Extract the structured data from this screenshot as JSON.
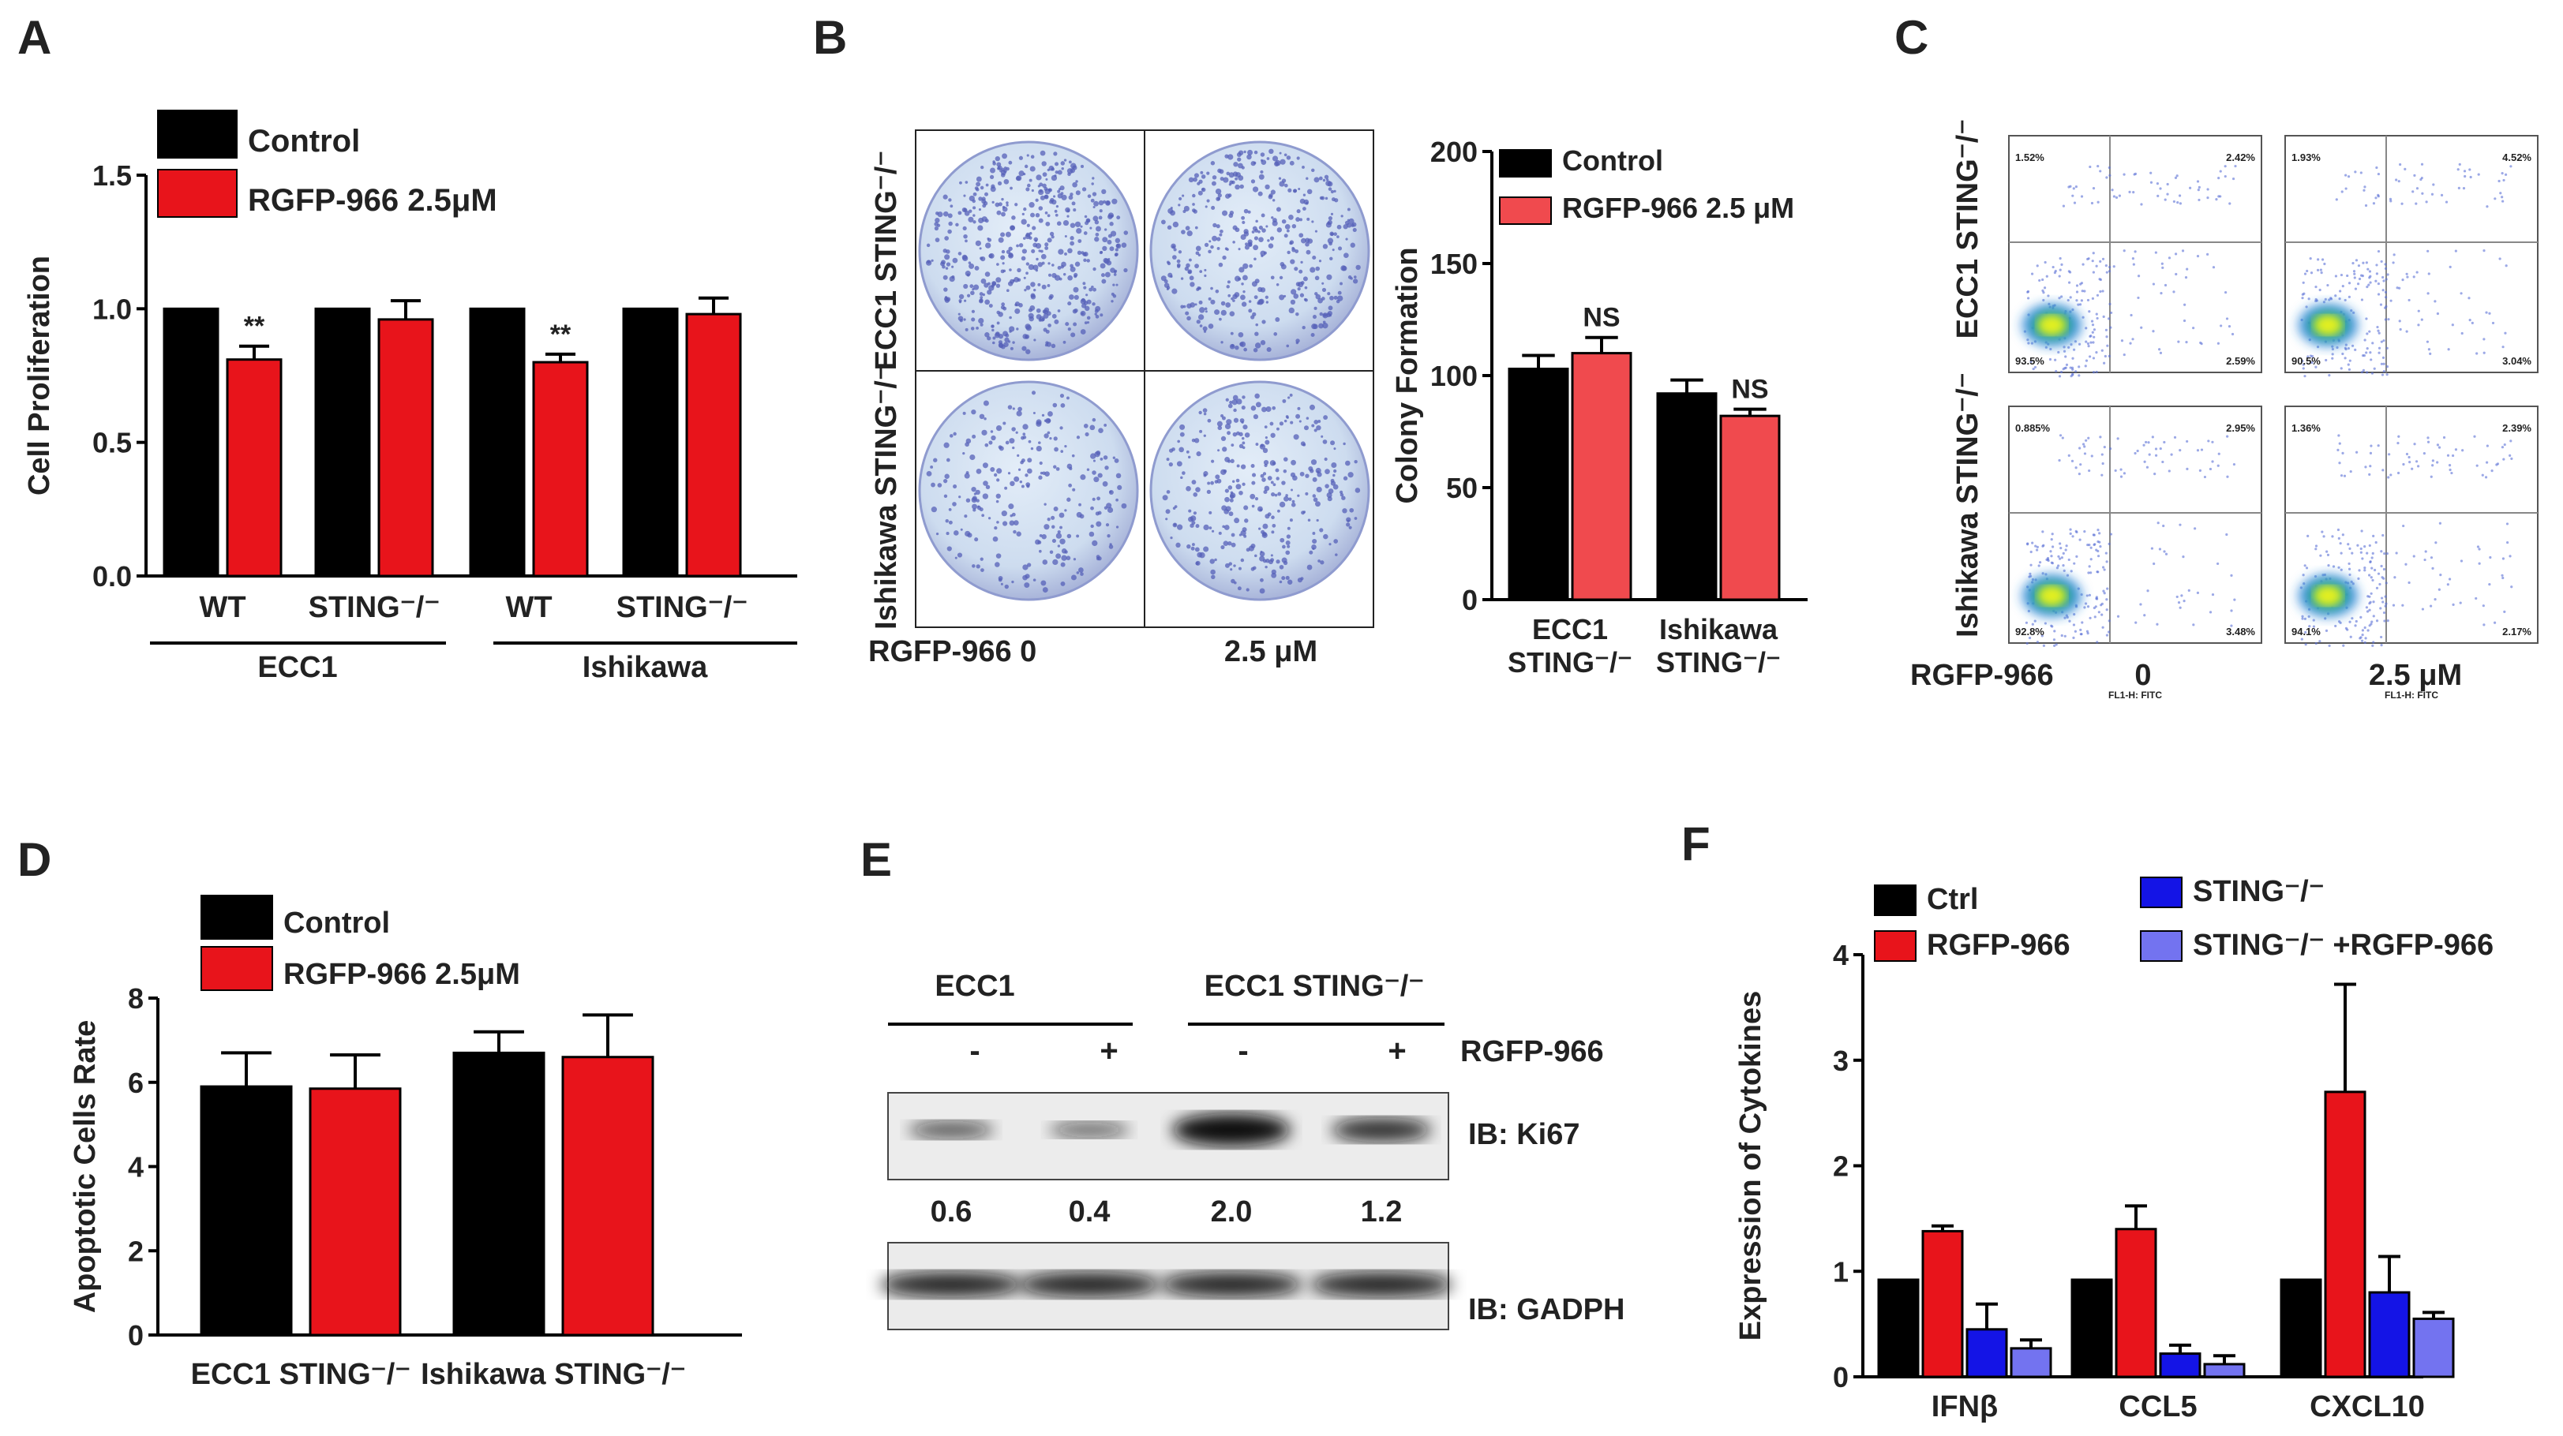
{
  "panels": {
    "A": "A",
    "B": "B",
    "C": "C",
    "D": "D",
    "E": "E",
    "F": "F"
  },
  "colors": {
    "control": "#000000",
    "rgfp": "#e8141b",
    "rgfp_b": "#f04a4e",
    "sting": "#1414e6",
    "sting_rgfp": "#7373f0",
    "dish": "#d9e6f3",
    "dot": "#5560b8",
    "flow": "#b8c4ee"
  },
  "chart_data": [
    {
      "panel": "A",
      "type": "bar",
      "ylabel": "Cell Proliferation",
      "ylim": [
        0,
        1.5
      ],
      "yticks": [
        {
          "v": 0,
          "t": "0.0"
        },
        {
          "v": 0.5,
          "t": "0.5"
        },
        {
          "v": 1,
          "t": "1.0"
        },
        {
          "v": 1.5,
          "t": "1.5"
        }
      ],
      "categories": [
        "WT",
        "STING⁻/⁻",
        "WT",
        "STING⁻/⁻"
      ],
      "groups": [
        "ECC1",
        "Ishikawa"
      ],
      "series": [
        {
          "name": "Control",
          "values": [
            1,
            1,
            1,
            1
          ],
          "errors": [
            0,
            0,
            0,
            0
          ]
        },
        {
          "name": "RGFP-966 2.5μM",
          "values": [
            0.81,
            0.96,
            0.8,
            0.98
          ],
          "errors": [
            0.05,
            0.07,
            0.03,
            0.06
          ]
        }
      ],
      "annotations": [
        "**",
        "",
        "**",
        ""
      ]
    },
    {
      "panel": "B",
      "type": "bar",
      "ylabel": "Colony Formation",
      "ylim": [
        0,
        200
      ],
      "yticks": [
        {
          "v": 0,
          "t": "0"
        },
        {
          "v": 50,
          "t": "50"
        },
        {
          "v": 100,
          "t": "100"
        },
        {
          "v": 150,
          "t": "150"
        },
        {
          "v": 200,
          "t": "200"
        }
      ],
      "categories": [
        [
          "ECC1",
          "STING⁻/⁻"
        ],
        [
          "Ishikawa",
          "STING⁻/⁻"
        ]
      ],
      "series": [
        {
          "name": "Control",
          "values": [
            103,
            92
          ],
          "errors": [
            6,
            6
          ]
        },
        {
          "name": "RGFP-966 2.5 μM",
          "values": [
            110,
            82
          ],
          "errors": [
            7,
            3
          ]
        }
      ],
      "annotations": [
        "NS",
        "NS"
      ]
    },
    {
      "panel": "D",
      "type": "bar",
      "ylabel": "Apoptotic Cells Rate",
      "ylim": [
        0,
        8
      ],
      "yticks": [
        {
          "v": 0,
          "t": "0"
        },
        {
          "v": 2,
          "t": "2"
        },
        {
          "v": 4,
          "t": "4"
        },
        {
          "v": 6,
          "t": "6"
        },
        {
          "v": 8,
          "t": "8"
        }
      ],
      "categories": [
        "ECC1 STING⁻/⁻",
        "Ishikawa STING⁻/⁻"
      ],
      "series": [
        {
          "name": "Control",
          "values": [
            5.9,
            6.7
          ],
          "errors": [
            0.8,
            0.5
          ]
        },
        {
          "name": "RGFP-966 2.5μM",
          "values": [
            5.85,
            6.6
          ],
          "errors": [
            0.8,
            1.0
          ]
        }
      ]
    },
    {
      "panel": "F",
      "type": "bar",
      "ylabel": "Expression of Cytokines",
      "ylim": [
        0,
        4
      ],
      "yticks": [
        {
          "v": 0,
          "t": "0"
        },
        {
          "v": 1,
          "t": "1"
        },
        {
          "v": 2,
          "t": "2"
        },
        {
          "v": 3,
          "t": "3"
        },
        {
          "v": 4,
          "t": "4"
        }
      ],
      "categories": [
        "IFNβ",
        "CCL5",
        "CXCL10"
      ],
      "series": [
        {
          "name": "Ctrl",
          "values": [
            0.92,
            0.92,
            0.92
          ],
          "errors": [
            0,
            0,
            0
          ]
        },
        {
          "name": "RGFP-966",
          "values": [
            1.38,
            1.4,
            2.7
          ],
          "errors": [
            0.05,
            0.22,
            1.02
          ]
        },
        {
          "name": "STING⁻/⁻",
          "values": [
            0.45,
            0.22,
            0.8
          ],
          "errors": [
            0.24,
            0.08,
            0.34
          ]
        },
        {
          "name": "STING⁻/⁻ +RGFP-966",
          "values": [
            0.27,
            0.12,
            0.55
          ],
          "errors": [
            0.08,
            0.08,
            0.06
          ]
        }
      ]
    }
  ],
  "panel_B": {
    "row_labels": [
      "ECC1 STING⁻/⁻",
      "Ishikawa STING⁻/⁻"
    ],
    "col_labels": [
      "RGFP-966 0",
      "2.5 μM"
    ]
  },
  "panel_C": {
    "row_labels": [
      "ECC1 STING⁻/⁻",
      "Ishikawa STING⁻/⁻"
    ],
    "bottom_label": "RGFP-966",
    "col_labels": [
      "0",
      "2.5 μM"
    ],
    "plots": [
      {
        "q1": "1.52%",
        "q2": "2.42%",
        "q3": "2.59%",
        "q4": "93.5%"
      },
      {
        "q1": "1.93%",
        "q2": "4.52%",
        "q3": "3.04%",
        "q4": "90.5%"
      },
      {
        "q1": "0.885%",
        "q2": "2.95%",
        "q3": "3.48%",
        "q4": "92.8%"
      },
      {
        "q1": "1.36%",
        "q2": "2.39%",
        "q3": "2.17%",
        "q4": "94.1%"
      }
    ],
    "x_axis_label": "FL1-H: FITC"
  },
  "panel_E": {
    "groups": [
      "ECC1",
      "ECC1  STING⁻/⁻"
    ],
    "treatment_label": "RGFP-966",
    "signs": [
      "-",
      "+",
      "-",
      "+"
    ],
    "ki67_label": "IB: Ki67",
    "gapdh_label": "IB: GADPH",
    "quant": [
      "0.6",
      "0.4",
      "2.0",
      "1.2"
    ],
    "ki67_intensity": [
      0.6,
      0.4,
      2.0,
      1.2
    ]
  }
}
